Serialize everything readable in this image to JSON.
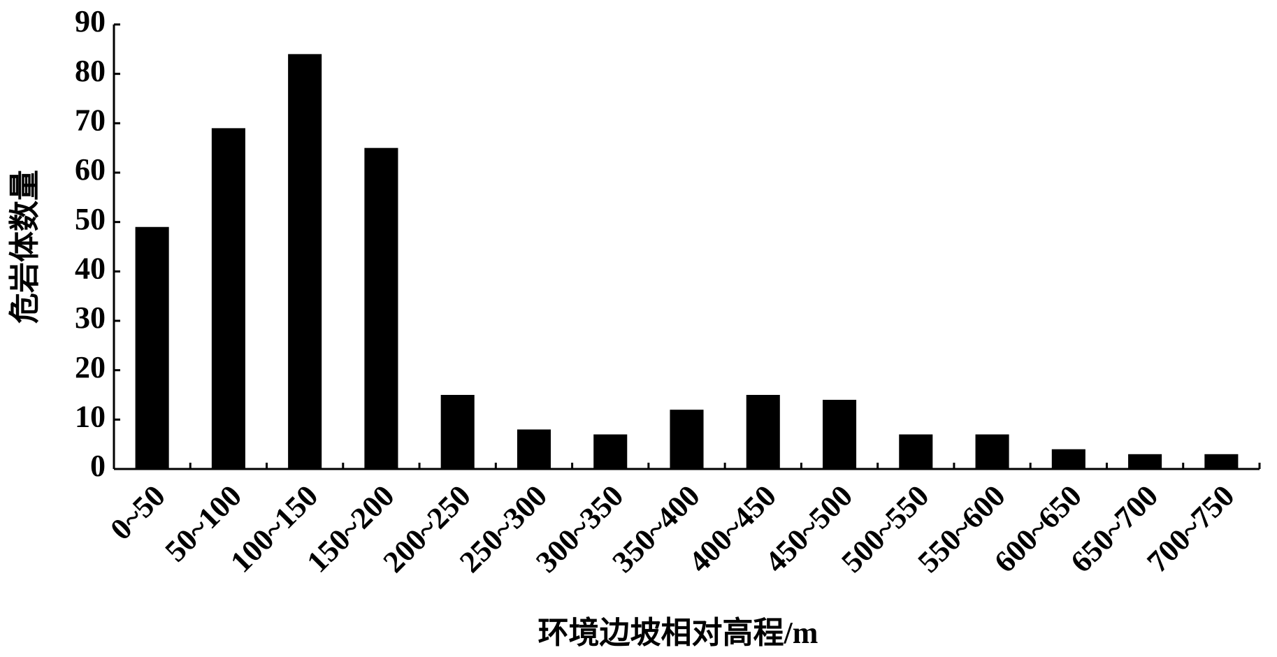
{
  "chart_data": {
    "type": "bar",
    "ylabel": "危岩体数量",
    "xlabel": "环境边坡相对高程/m",
    "categories": [
      "0~50",
      "50~100",
      "100~150",
      "150~200",
      "200~250",
      "250~300",
      "300~350",
      "350~400",
      "400~450",
      "450~500",
      "500~550",
      "550~600",
      "600~650",
      "650~700",
      "700~750"
    ],
    "values": [
      49,
      69,
      84,
      65,
      15,
      8,
      7,
      12,
      15,
      14,
      7,
      7,
      4,
      3,
      3
    ],
    "color": "#000000",
    "ylim": [
      0,
      90
    ],
    "yticks": [
      0,
      10,
      20,
      30,
      40,
      50,
      60,
      70,
      80,
      90
    ],
    "grid": false
  }
}
